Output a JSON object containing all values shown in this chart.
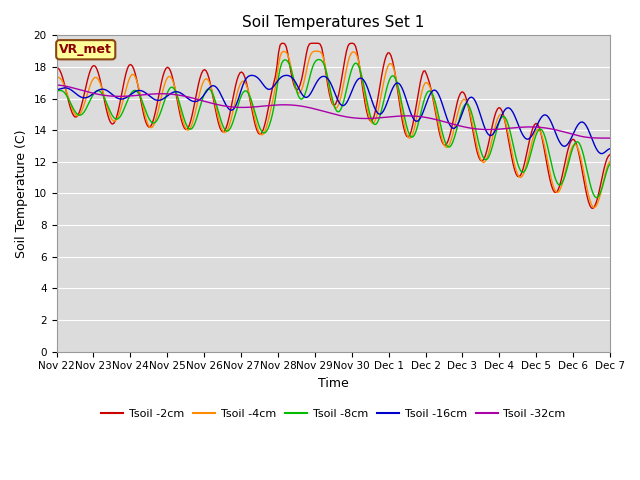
{
  "title": "Soil Temperatures Set 1",
  "xlabel": "Time",
  "ylabel": "Soil Temperature (C)",
  "ylim": [
    0,
    20
  ],
  "yticks": [
    0,
    2,
    4,
    6,
    8,
    10,
    12,
    14,
    16,
    18,
    20
  ],
  "plot_bg": "#dcdcdc",
  "fig_bg": "#ffffff",
  "annotation_text": "VR_met",
  "annotation_bg": "#ffff99",
  "annotation_border": "#8B4513",
  "annotation_text_color": "#8B0000",
  "series": [
    {
      "label": "Tsoil -2cm",
      "color": "#cc0000"
    },
    {
      "label": "Tsoil -4cm",
      "color": "#ff8c00"
    },
    {
      "label": "Tsoil -8cm",
      "color": "#00bb00"
    },
    {
      "label": "Tsoil -16cm",
      "color": "#0000cc"
    },
    {
      "label": "Tsoil -32cm",
      "color": "#aa00aa"
    }
  ],
  "x_labels": [
    "Nov 22",
    "Nov 23",
    "Nov 24",
    "Nov 25",
    "Nov 26",
    "Nov 27",
    "Nov 28",
    "Nov 29",
    "Nov 30",
    "Dec 1",
    "Dec 2",
    "Dec 3",
    "Dec 4",
    "Dec 5",
    "Dec 6",
    "Dec 7"
  ],
  "n_points": 360,
  "grid_color": "#ffffff",
  "title_fontsize": 11,
  "axis_label_fontsize": 9,
  "tick_fontsize": 7.5,
  "legend_fontsize": 8
}
